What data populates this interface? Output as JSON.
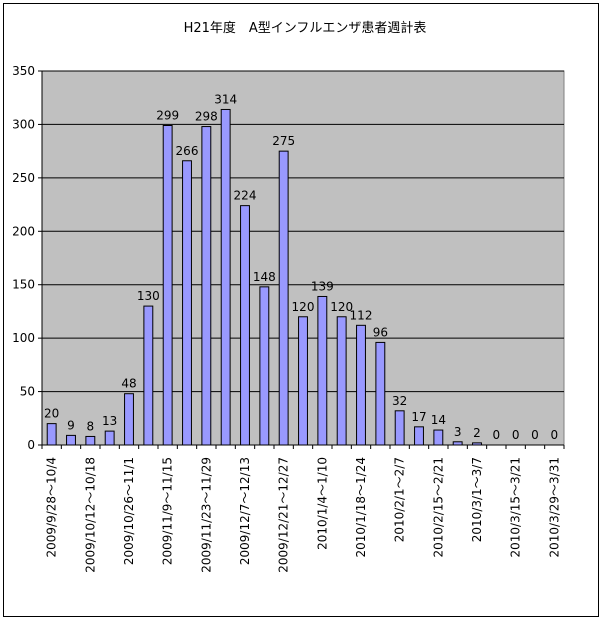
{
  "chart_data": {
    "type": "bar",
    "title": "H21年度　A型インフルエンザ患者週計表",
    "xlabel": "",
    "ylabel": "",
    "ylim": [
      0,
      350
    ],
    "y_ticks": [
      0,
      50,
      100,
      150,
      200,
      250,
      300,
      350
    ],
    "grid": true,
    "legend": "none",
    "categories": [
      "2009/9/28～10/4",
      "",
      "2009/10/12～10/18",
      "",
      "2009/10/26～11/1",
      "",
      "2009/11/9～11/15",
      "",
      "2009/11/23～11/29",
      "",
      "2009/12/7～12/13",
      "",
      "2009/12/21～12/27",
      "",
      "2010/1/4～1/10",
      "",
      "2010/1/18～1/24",
      "",
      "2010/2/1～2/7",
      "",
      "2010/2/15～2/21",
      "",
      "2010/3/1～3/7",
      "",
      "2010/3/15～3/21",
      "",
      "2010/3/29～3/31"
    ],
    "values": [
      20,
      9,
      8,
      13,
      48,
      130,
      299,
      266,
      298,
      314,
      224,
      148,
      275,
      120,
      139,
      120,
      112,
      96,
      32,
      17,
      14,
      3,
      2,
      0,
      0,
      0,
      0
    ],
    "bar_color": "#9999ff",
    "plot_background": "#c0c0c0"
  }
}
